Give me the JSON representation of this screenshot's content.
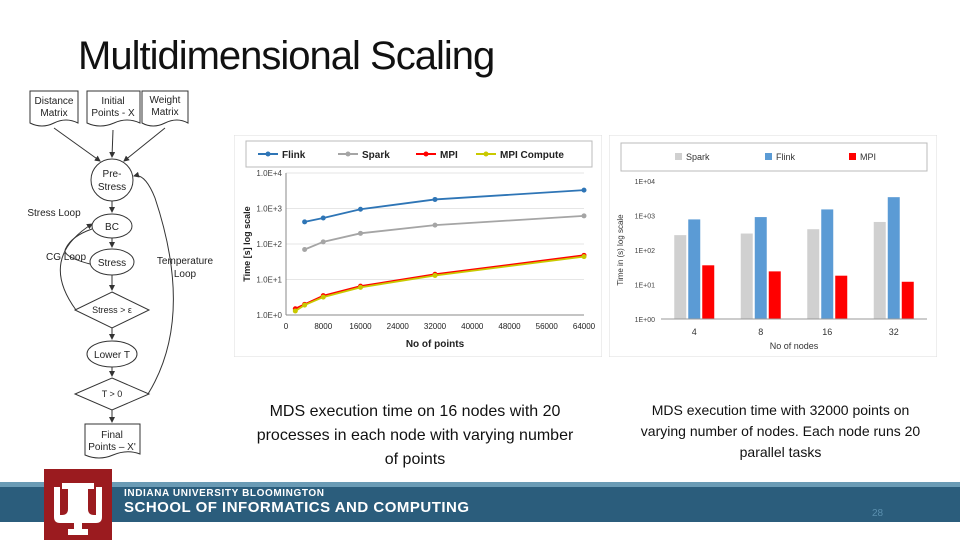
{
  "slide": {
    "title": "Multidimensional Scaling",
    "caption_left": "MDS execution time on 16 nodes with 20 processes in each node with varying number of points",
    "caption_right": "MDS execution time with 32000 points on varying number of nodes. Each node runs 20 parallel tasks",
    "footer_institution": "INDIANA UNIVERSITY BLOOMINGTON",
    "footer_school": "SCHOOL OF INFORMATICS AND COMPUTING",
    "page_number": "28"
  },
  "flowchart": {
    "nodes": {
      "distance_matrix": [
        "Distance",
        "Matrix"
      ],
      "initial_points": [
        "Initial",
        "Points - X"
      ],
      "weight_matrix": [
        "Weight",
        "Matrix"
      ],
      "pre_stress": [
        "Pre-",
        "Stress"
      ],
      "bc": "BC",
      "stress": "Stress",
      "stress_check": "Stress > ε",
      "lower_t": "Lower T",
      "t_check": "T > 0",
      "final_points": [
        "Final",
        "Points – X'"
      ]
    },
    "labels": {
      "stress_loop": "Stress Loop",
      "cg_loop": "CG Loop",
      "temperature_loop": [
        "Temperature",
        "Loop"
      ]
    }
  },
  "chart_data": [
    {
      "type": "line",
      "title": "",
      "xlabel": "No of points",
      "ylabel": "Time [s] log scale",
      "yscale": "log",
      "xlim": [
        0,
        64000
      ],
      "ylim": [
        1,
        10000
      ],
      "x_ticks": [
        "0",
        "8000",
        "16000",
        "24000",
        "32000",
        "40000",
        "48000",
        "56000",
        "64000"
      ],
      "y_ticks": [
        "1.0E+0",
        "1.0E+1",
        "1.0E+2",
        "1.0E+3",
        "1.0E+4"
      ],
      "legend": [
        "Flink",
        "Spark",
        "MPI",
        "MPI Compute"
      ],
      "legend_position": "top",
      "series": [
        {
          "name": "Flink",
          "color": "#2e75b6",
          "x": [
            4000,
            8000,
            16000,
            32000,
            64000
          ],
          "values": [
            420,
            540,
            950,
            1800,
            3300
          ]
        },
        {
          "name": "Spark",
          "color": "#a5a5a5",
          "x": [
            4000,
            8000,
            16000,
            32000,
            64000
          ],
          "values": [
            70,
            115,
            200,
            340,
            620
          ]
        },
        {
          "name": "MPI",
          "color": "#ff0000",
          "x": [
            2000,
            4000,
            8000,
            16000,
            32000,
            64000
          ],
          "values": [
            1.5,
            2,
            3.5,
            6.5,
            14,
            48
          ]
        },
        {
          "name": "MPI Compute",
          "color": "#c9c900",
          "x": [
            2000,
            4000,
            8000,
            16000,
            32000,
            64000
          ],
          "values": [
            1.3,
            1.9,
            3.2,
            6,
            13,
            44
          ]
        }
      ]
    },
    {
      "type": "bar",
      "title": "",
      "xlabel": "No of nodes",
      "ylabel": "Time in (s) log scale",
      "yscale": "log",
      "ylim": [
        1,
        10000
      ],
      "y_ticks": [
        "1E+00",
        "1E+01",
        "1E+02",
        "1E+03",
        "1E+04"
      ],
      "categories": [
        "4",
        "8",
        "16",
        "32"
      ],
      "legend": [
        "Spark",
        "Flink",
        "MPI"
      ],
      "legend_position": "top",
      "series": [
        {
          "name": "Spark",
          "color": "#d0d0d0",
          "values": [
            270,
            300,
            400,
            650
          ]
        },
        {
          "name": "Flink",
          "color": "#5b9bd5",
          "values": [
            770,
            900,
            1500,
            3400
          ]
        },
        {
          "name": "MPI",
          "color": "#ff0000",
          "values": [
            36,
            24,
            18,
            12
          ]
        }
      ]
    }
  ]
}
